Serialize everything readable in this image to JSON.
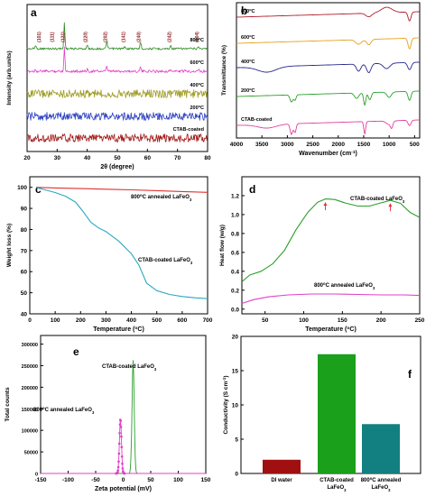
{
  "panels": {
    "a": {
      "letter": "a",
      "xlabel": "2θ (degree)",
      "ylabel": "Intensity (arb.units)",
      "xticks": [
        20,
        30,
        40,
        50,
        60,
        70,
        80
      ],
      "peak_labels": [
        {
          "x": 24.5,
          "text": "(101)"
        },
        {
          "x": 28.8,
          "text": "(111)"
        },
        {
          "x": 32.4,
          "text": "(121)"
        },
        {
          "x": 40.0,
          "text": "(220)"
        },
        {
          "x": 46.5,
          "text": "(202)"
        },
        {
          "x": 52.5,
          "text": "(141)"
        },
        {
          "x": 57.7,
          "text": "(240)"
        },
        {
          "x": 67.8,
          "text": "(242)"
        },
        {
          "x": 77.0,
          "text": "(204)"
        }
      ],
      "series": [
        {
          "name": "800°C",
          "label": "800",
          "sup": "o",
          "unit": "C",
          "color": "#2e8b22",
          "peaks": [
            [
              22.8,
              4
            ],
            [
              32.4,
              30
            ],
            [
              40.0,
              4
            ],
            [
              46.5,
              9
            ],
            [
              52.5,
              2
            ],
            [
              57.7,
              8
            ],
            [
              67.8,
              4
            ],
            [
              77.0,
              3
            ]
          ]
        },
        {
          "name": "600°C",
          "label": "600",
          "sup": "o",
          "unit": "C",
          "color": "#e040c8",
          "peaks": [
            [
              22.8,
              2
            ],
            [
              32.4,
              27
            ],
            [
              40.0,
              2
            ],
            [
              46.5,
              5
            ],
            [
              57.7,
              5
            ],
            [
              67.8,
              2
            ],
            [
              77.0,
              2
            ]
          ]
        },
        {
          "name": "400°C",
          "label": "400",
          "sup": "o",
          "unit": "C",
          "color": "#9c9a20",
          "peaks": []
        },
        {
          "name": "200°C",
          "label": "200",
          "sup": "o",
          "unit": "C",
          "color": "#2b3fbf",
          "peaks": []
        },
        {
          "name": "CTAB-coated",
          "label": "CTAB-coated",
          "sup": "",
          "unit": "",
          "color": "#a01818",
          "peaks": []
        }
      ]
    },
    "b": {
      "letter": "b",
      "xlabel": "Wavenumber (cm",
      "xlabel_sup": "-1",
      "xlabel_end": ")",
      "ylabel": "Transmittance (%)",
      "xticks": [
        4000,
        3500,
        3000,
        2500,
        2000,
        1500,
        1000,
        500
      ],
      "series": [
        {
          "name": "800°C",
          "label": "800",
          "sup": "o",
          "unit": "C",
          "color": "#b01c2c"
        },
        {
          "name": "600°C",
          "label": "600",
          "sup": "o",
          "unit": "C",
          "color": "#e8a020"
        },
        {
          "name": "400°C",
          "label": "400",
          "sup": "o",
          "unit": "C",
          "color": "#28288c"
        },
        {
          "name": "200°C",
          "label": "200",
          "sup": "o",
          "unit": "C",
          "color": "#2ca02c"
        },
        {
          "name": "CTAB-coated",
          "label": "CTAB-coated",
          "sup": "",
          "unit": "",
          "color": "#e0409c"
        }
      ]
    },
    "c": {
      "letter": "c",
      "xlabel": "Temperature (",
      "xlabel_sup": "o",
      "xlabel_end": "C)",
      "ylabel": "Weight loss (%)",
      "xticks": [
        0,
        100,
        200,
        300,
        400,
        500,
        600,
        700
      ],
      "yticks": [
        40,
        50,
        60,
        70,
        80,
        90,
        100
      ],
      "xlim": [
        0,
        700
      ],
      "ylim": [
        40,
        105
      ],
      "series": [
        {
          "name": "800°C annealed LaFeO3",
          "label": "800",
          "sup": "o",
          "tail": "C annealed LaFeO",
          "sub": "3",
          "color": "#e03030",
          "x": [
            25,
            100,
            200,
            300,
            400,
            500,
            600,
            700
          ],
          "y": [
            100,
            99.7,
            99.4,
            99.1,
            98.8,
            98.4,
            98.0,
            97.6
          ]
        },
        {
          "name": "CTAB-coated LaFeO3",
          "label": "CTAB-coated LaFeO",
          "sup": "",
          "tail": "",
          "sub": "3",
          "color": "#2aa8c0",
          "x": [
            25,
            60,
            100,
            140,
            180,
            210,
            240,
            270,
            300,
            350,
            400,
            430,
            460,
            500,
            550,
            600,
            650,
            700
          ],
          "y": [
            100,
            98.8,
            97.5,
            95.8,
            93.0,
            88.5,
            83.5,
            80.8,
            79.0,
            74.5,
            68.5,
            63.0,
            54.5,
            51.0,
            49.2,
            48.2,
            47.6,
            47.2
          ]
        }
      ]
    },
    "d": {
      "letter": "d",
      "xlabel": "Temperature (",
      "xlabel_sup": "o",
      "xlabel_end": "C)",
      "ylabel": "Heat flow (w/g)",
      "xticks": [
        50,
        100,
        150,
        200,
        250
      ],
      "yticks": [
        0.0,
        0.2,
        0.4,
        0.6,
        0.8,
        1.0,
        1.2
      ],
      "xlim": [
        20,
        250
      ],
      "ylim": [
        -0.05,
        1.4
      ],
      "arrows": [
        {
          "x": 128,
          "y": 1.16
        },
        {
          "x": 212,
          "y": 1.15
        }
      ],
      "series": [
        {
          "name": "CTAB-coated LaFeO3",
          "label": "CTAB-coated LaFeO",
          "sup": "",
          "tail": "",
          "sub": "3",
          "color": "#2ca02c",
          "x": [
            20,
            30,
            45,
            60,
            75,
            90,
            105,
            118,
            128,
            140,
            155,
            170,
            185,
            198,
            212,
            225,
            238,
            250
          ],
          "y": [
            0.29,
            0.36,
            0.4,
            0.48,
            0.62,
            0.84,
            1.02,
            1.13,
            1.165,
            1.16,
            1.12,
            1.09,
            1.09,
            1.12,
            1.15,
            1.12,
            1.02,
            0.97
          ]
        },
        {
          "name": "800°C annealed LaFeO3",
          "label": "800",
          "sup": "o",
          "tail": "C annealed LaFeO",
          "sub": "3",
          "color": "#e040c8",
          "x": [
            20,
            35,
            55,
            80,
            110,
            140,
            170,
            200,
            230,
            250
          ],
          "y": [
            0.06,
            0.1,
            0.13,
            0.15,
            0.16,
            0.16,
            0.155,
            0.15,
            0.15,
            0.145
          ]
        }
      ]
    },
    "e": {
      "letter": "e",
      "xlabel": "Zeta potential (mV)",
      "ylabel": "Total counts",
      "xticks": [
        -150,
        -100,
        -50,
        0,
        50,
        100,
        150
      ],
      "yticks": [
        0,
        50000,
        100000,
        150000,
        200000,
        250000,
        300000
      ],
      "xlim": [
        -150,
        150
      ],
      "ylim": [
        0,
        320000
      ],
      "series": [
        {
          "name": "CTAB-coated LaFeO3",
          "label": "CTAB-coated LaFeO",
          "sup": "",
          "tail": "",
          "sub": "3",
          "color": "#2ca02c",
          "center": 18,
          "width": 2.8,
          "peak": 262000,
          "markers": false
        },
        {
          "name": "800°C annealed LaFeO3",
          "label": "800",
          "sup": "o",
          "tail": "C annealed LaFeO",
          "sub": "3",
          "color": "#e040c8",
          "center": -5,
          "width": 2.6,
          "peak": 125000,
          "markers": true
        }
      ]
    },
    "f": {
      "letter": "f",
      "type": "bar",
      "ylabel": "Conductivity (S cm",
      "ylabel_sup": "-1",
      "ylabel_end": ")",
      "yticks": [
        0,
        5,
        10,
        15,
        20
      ],
      "ylim": [
        0,
        20
      ],
      "categories": [
        {
          "line1": "DI water",
          "line2": "",
          "sup": "",
          "value": 2.0,
          "color": "#a01010"
        },
        {
          "line1": "CTAB-coated",
          "line2": "LaFeO",
          "sup": "",
          "sub": "3",
          "value": 17.4,
          "color": "#1aa01a"
        },
        {
          "line1": "800",
          "sup": "o",
          "line1_tail": "C annealed",
          "line2": "LaFeO",
          "sub": "3",
          "value": 7.2,
          "color": "#127f80"
        }
      ]
    }
  }
}
